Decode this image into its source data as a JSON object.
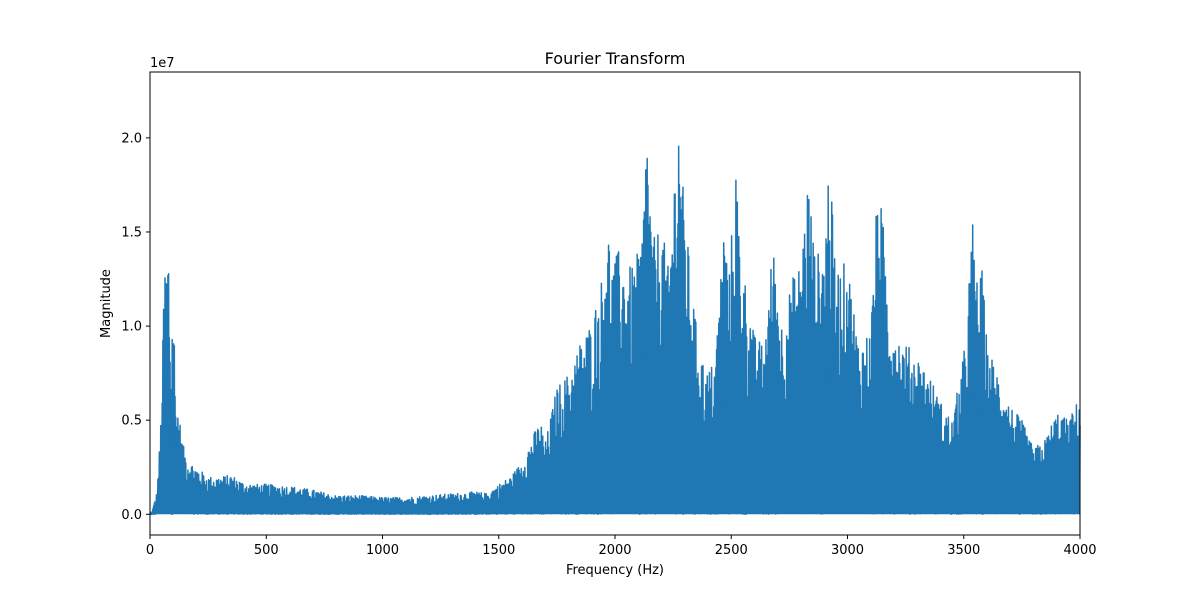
{
  "chart_data": {
    "type": "line",
    "title": "Fourier Transform",
    "xlabel": "Frequency (Hz)",
    "ylabel": "Magnitude",
    "offset_label": "1e7",
    "xlim": [
      0,
      4000
    ],
    "ylim": [
      -0.11,
      2.35
    ],
    "y_scale_multiplier": 10000000,
    "grid": false,
    "legend": "none",
    "x_ticks": [
      {
        "value": 0,
        "label": "0"
      },
      {
        "value": 500,
        "label": "500"
      },
      {
        "value": 1000,
        "label": "1000"
      },
      {
        "value": 1500,
        "label": "1500"
      },
      {
        "value": 2000,
        "label": "2000"
      },
      {
        "value": 2500,
        "label": "2500"
      },
      {
        "value": 3000,
        "label": "3000"
      },
      {
        "value": 3500,
        "label": "3500"
      },
      {
        "value": 4000,
        "label": "4000"
      }
    ],
    "y_ticks": [
      {
        "value": 0.0,
        "label": "0.0"
      },
      {
        "value": 0.5,
        "label": "0.5"
      },
      {
        "value": 1.0,
        "label": "1.0"
      },
      {
        "value": 1.5,
        "label": "1.5"
      },
      {
        "value": 2.0,
        "label": "2.0"
      }
    ],
    "series": [
      {
        "color": "#1f77b4",
        "envelope": [
          [
            10,
            0.02
          ],
          [
            30,
            0.12
          ],
          [
            45,
            0.45
          ],
          [
            55,
            0.9
          ],
          [
            60,
            1.32
          ],
          [
            65,
            1.34
          ],
          [
            70,
            1.36
          ],
          [
            75,
            1.42
          ],
          [
            80,
            1.43
          ],
          [
            90,
            0.8
          ],
          [
            100,
            1.27
          ],
          [
            110,
            0.6
          ],
          [
            120,
            0.58
          ],
          [
            140,
            0.38
          ],
          [
            160,
            0.3
          ],
          [
            200,
            0.25
          ],
          [
            250,
            0.2
          ],
          [
            300,
            0.2
          ],
          [
            350,
            0.21
          ],
          [
            400,
            0.17
          ],
          [
            450,
            0.16
          ],
          [
            500,
            0.16
          ],
          [
            600,
            0.15
          ],
          [
            700,
            0.13
          ],
          [
            800,
            0.1
          ],
          [
            900,
            0.1
          ],
          [
            1000,
            0.09
          ],
          [
            1100,
            0.09
          ],
          [
            1200,
            0.1
          ],
          [
            1300,
            0.11
          ],
          [
            1400,
            0.12
          ],
          [
            1450,
            0.11
          ],
          [
            1500,
            0.16
          ],
          [
            1550,
            0.2
          ],
          [
            1600,
            0.28
          ],
          [
            1650,
            0.43
          ],
          [
            1680,
            0.5
          ],
          [
            1700,
            0.38
          ],
          [
            1750,
            0.68
          ],
          [
            1800,
            0.75
          ],
          [
            1850,
            0.92
          ],
          [
            1900,
            1.03
          ],
          [
            1950,
            1.3
          ],
          [
            1965,
            1.58
          ],
          [
            1990,
            1.33
          ],
          [
            2020,
            1.42
          ],
          [
            2050,
            1.3
          ],
          [
            2090,
            1.35
          ],
          [
            2120,
            1.53
          ],
          [
            2135,
            2.16
          ],
          [
            2160,
            1.45
          ],
          [
            2200,
            1.55
          ],
          [
            2230,
            1.3
          ],
          [
            2265,
            2.03
          ],
          [
            2280,
            2.23
          ],
          [
            2290,
            1.78
          ],
          [
            2320,
            1.35
          ],
          [
            2350,
            1.0
          ],
          [
            2390,
            0.75
          ],
          [
            2430,
            0.82
          ],
          [
            2470,
            1.58
          ],
          [
            2490,
            1.25
          ],
          [
            2520,
            1.89
          ],
          [
            2540,
            1.4
          ],
          [
            2600,
            0.95
          ],
          [
            2640,
            0.9
          ],
          [
            2680,
            1.45
          ],
          [
            2720,
            1.0
          ],
          [
            2760,
            1.25
          ],
          [
            2800,
            1.35
          ],
          [
            2830,
            1.83
          ],
          [
            2860,
            1.38
          ],
          [
            2900,
            1.42
          ],
          [
            2920,
            1.92
          ],
          [
            2950,
            1.3
          ],
          [
            3000,
            1.35
          ],
          [
            3050,
            0.9
          ],
          [
            3100,
            1.0
          ],
          [
            3130,
            1.77
          ],
          [
            3150,
            1.6
          ],
          [
            3180,
            1.1
          ],
          [
            3230,
            0.93
          ],
          [
            3300,
            0.85
          ],
          [
            3350,
            0.75
          ],
          [
            3400,
            0.6
          ],
          [
            3450,
            0.5
          ],
          [
            3500,
            0.85
          ],
          [
            3540,
            1.59
          ],
          [
            3560,
            1.2
          ],
          [
            3580,
            1.31
          ],
          [
            3600,
            0.9
          ],
          [
            3650,
            0.75
          ],
          [
            3700,
            0.58
          ],
          [
            3750,
            0.5
          ],
          [
            3800,
            0.35
          ],
          [
            3850,
            0.4
          ],
          [
            3900,
            0.55
          ],
          [
            3950,
            0.5
          ],
          [
            4000,
            0.63
          ]
        ]
      }
    ]
  }
}
